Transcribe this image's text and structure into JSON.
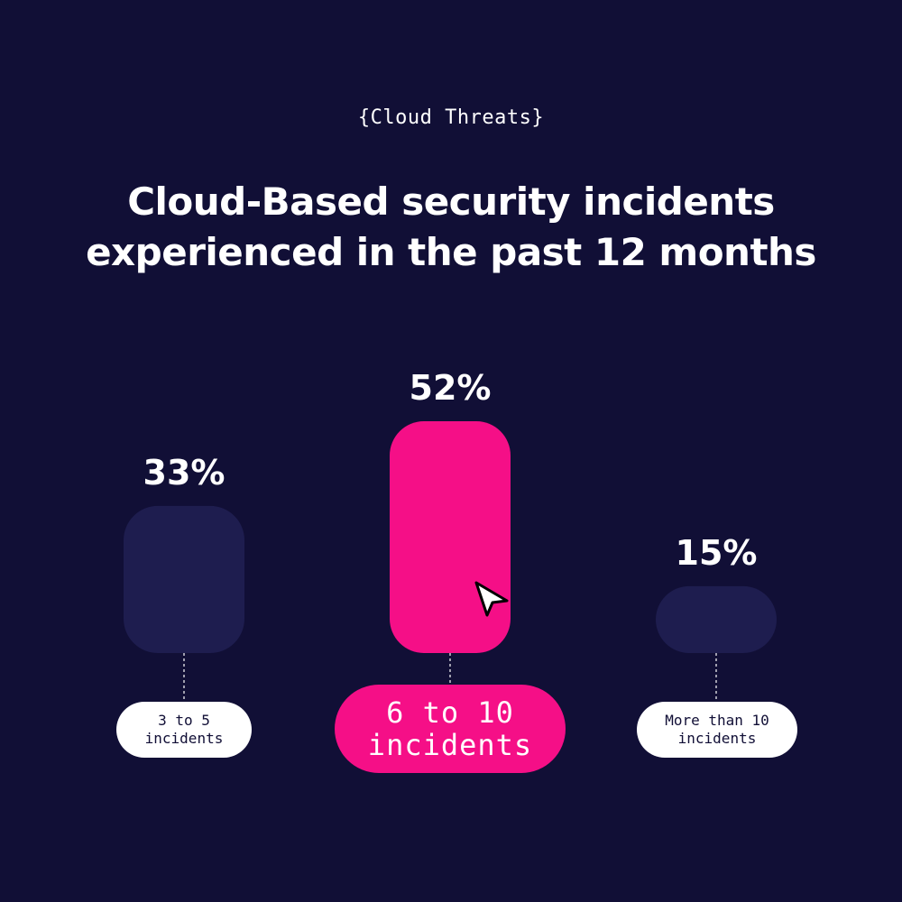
{
  "eyebrow": "{Cloud Threats}",
  "title_lines": [
    "Cloud-Based security incidents",
    "experienced in the past 12 months"
  ],
  "chart_data": {
    "type": "bar",
    "title": "Cloud-Based security incidents experienced in the past 12 months",
    "categories": [
      "3 to 5\nincidents",
      "6 to 10\nincidents",
      "More than 10\nincidents"
    ],
    "values": [
      33,
      52,
      15
    ],
    "value_labels": [
      "33%",
      "52%",
      "15%"
    ],
    "highlight_index": 1,
    "unit": "%",
    "ylim": [
      0,
      52
    ]
  },
  "colors": {
    "background": "#110f36",
    "bar": "#1e1d4f",
    "highlight": "#f50f87",
    "text": "#ffffff"
  }
}
